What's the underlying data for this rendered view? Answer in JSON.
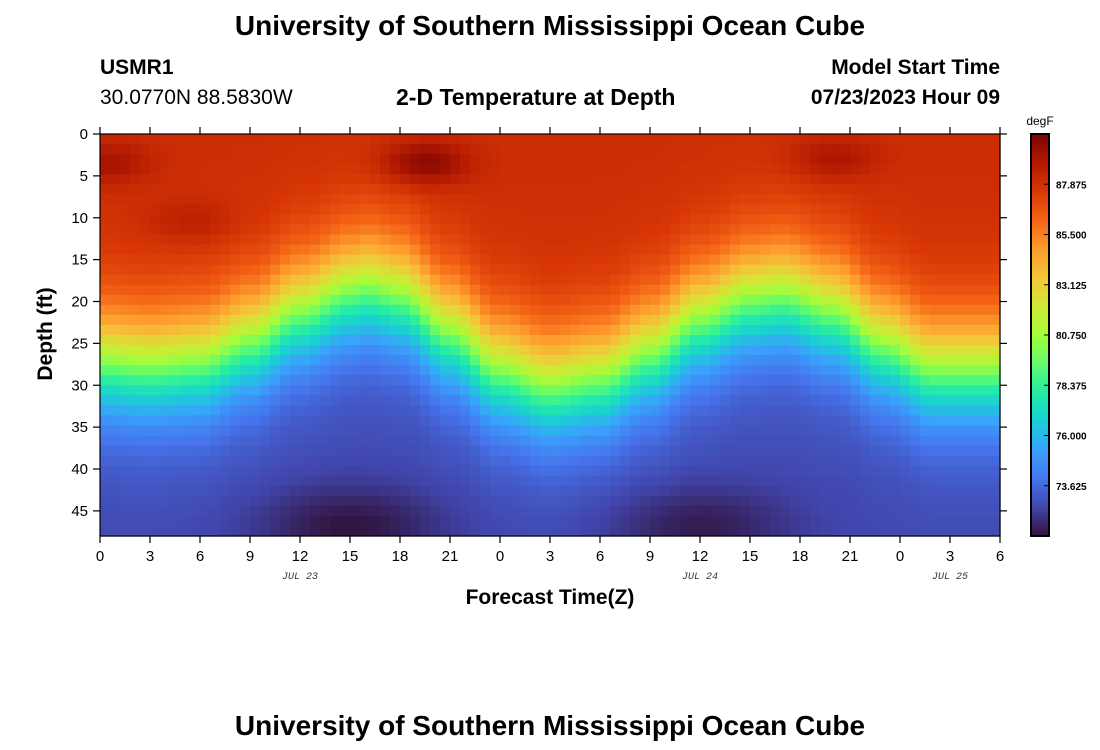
{
  "header": {
    "title": "University of Southern Mississippi Ocean Cube",
    "station": "USMR1",
    "coords": "30.0770N  88.5830W",
    "plot_title": "2-D Temperature at Depth",
    "model_label": "Model Start Time",
    "model_time": "07/23/2023 Hour 09"
  },
  "footer": {
    "title": "University of Southern Mississippi Ocean Cube"
  },
  "chart_data": {
    "type": "heatmap",
    "title": "2-D Temperature at Depth",
    "xlabel": "Forecast Time(Z)",
    "ylabel": "Depth (ft)",
    "x_unit": "hours since Jul 23 00Z",
    "xlim": [
      0,
      54
    ],
    "ylim": [
      0,
      48
    ],
    "x_ticks": [
      {
        "hour": 0,
        "label": "0"
      },
      {
        "hour": 3,
        "label": "3"
      },
      {
        "hour": 6,
        "label": "6"
      },
      {
        "hour": 9,
        "label": "9"
      },
      {
        "hour": 12,
        "label": "12"
      },
      {
        "hour": 15,
        "label": "15"
      },
      {
        "hour": 18,
        "label": "18"
      },
      {
        "hour": 21,
        "label": "21"
      },
      {
        "hour": 24,
        "label": "0"
      },
      {
        "hour": 27,
        "label": "3"
      },
      {
        "hour": 30,
        "label": "6"
      },
      {
        "hour": 33,
        "label": "9"
      },
      {
        "hour": 36,
        "label": "12"
      },
      {
        "hour": 39,
        "label": "15"
      },
      {
        "hour": 42,
        "label": "18"
      },
      {
        "hour": 45,
        "label": "21"
      },
      {
        "hour": 48,
        "label": "0"
      },
      {
        "hour": 51,
        "label": "3"
      },
      {
        "hour": 54,
        "label": "6"
      }
    ],
    "date_labels": [
      {
        "hour": 12,
        "label": "JUL 23"
      },
      {
        "hour": 36,
        "label": "JUL 24"
      },
      {
        "hour": 51,
        "label": "JUL 25"
      }
    ],
    "y_ticks": [
      0,
      5,
      10,
      15,
      20,
      25,
      30,
      35,
      40,
      45
    ],
    "colorbar": {
      "unit": "degF",
      "min": 71.25,
      "max": 90.25,
      "ticks": [
        "87.875",
        "85.500",
        "83.125",
        "80.750",
        "78.375",
        "76.000",
        "73.625"
      ],
      "colors": [
        "#30123b",
        "#4145ab",
        "#4675ed",
        "#39a2fc",
        "#1bcfd4",
        "#24eca6",
        "#61fc6c",
        "#a4fc3b",
        "#d1e834",
        "#f3c63a",
        "#fe9b2d",
        "#f36315",
        "#d93806",
        "#b11901",
        "#7a0402"
      ]
    },
    "surface_temp_degF": 88.0,
    "deep_temp_degF": 71.5,
    "thermocline": [
      {
        "hour": 0,
        "depth_ft": 27
      },
      {
        "hour": 3,
        "depth_ft": 27.5
      },
      {
        "hour": 6,
        "depth_ft": 27
      },
      {
        "hour": 9,
        "depth_ft": 24.5
      },
      {
        "hour": 12,
        "depth_ft": 21
      },
      {
        "hour": 15,
        "depth_ft": 18.5
      },
      {
        "hour": 16,
        "depth_ft": 18
      },
      {
        "hour": 18,
        "depth_ft": 19
      },
      {
        "hour": 21,
        "depth_ft": 23.5
      },
      {
        "hour": 24,
        "depth_ft": 28
      },
      {
        "hour": 27,
        "depth_ft": 30
      },
      {
        "hour": 30,
        "depth_ft": 29
      },
      {
        "hour": 33,
        "depth_ft": 26
      },
      {
        "hour": 36,
        "depth_ft": 22
      },
      {
        "hour": 39,
        "depth_ft": 19.5
      },
      {
        "hour": 41,
        "depth_ft": 19
      },
      {
        "hour": 44,
        "depth_ft": 21
      },
      {
        "hour": 47,
        "depth_ft": 25
      },
      {
        "hour": 50,
        "depth_ft": 28
      },
      {
        "hour": 54,
        "depth_ft": 28
      }
    ],
    "warm_spots": [
      {
        "hour": 19.5,
        "depth_ft": 3.5,
        "peak_degF": 90.0
      },
      {
        "hour": 0.5,
        "depth_ft": 3.5,
        "peak_degF": 89.2
      },
      {
        "hour": 5.5,
        "depth_ft": 10.5,
        "peak_degF": 88.8
      },
      {
        "hour": 44,
        "depth_ft": 3,
        "peak_degF": 89.2
      }
    ],
    "cold_cores": [
      {
        "hour": 15,
        "depth_ft": 47,
        "min_degF": 71.3
      },
      {
        "hour": 36,
        "depth_ft": 47,
        "min_degF": 71.5
      }
    ]
  }
}
